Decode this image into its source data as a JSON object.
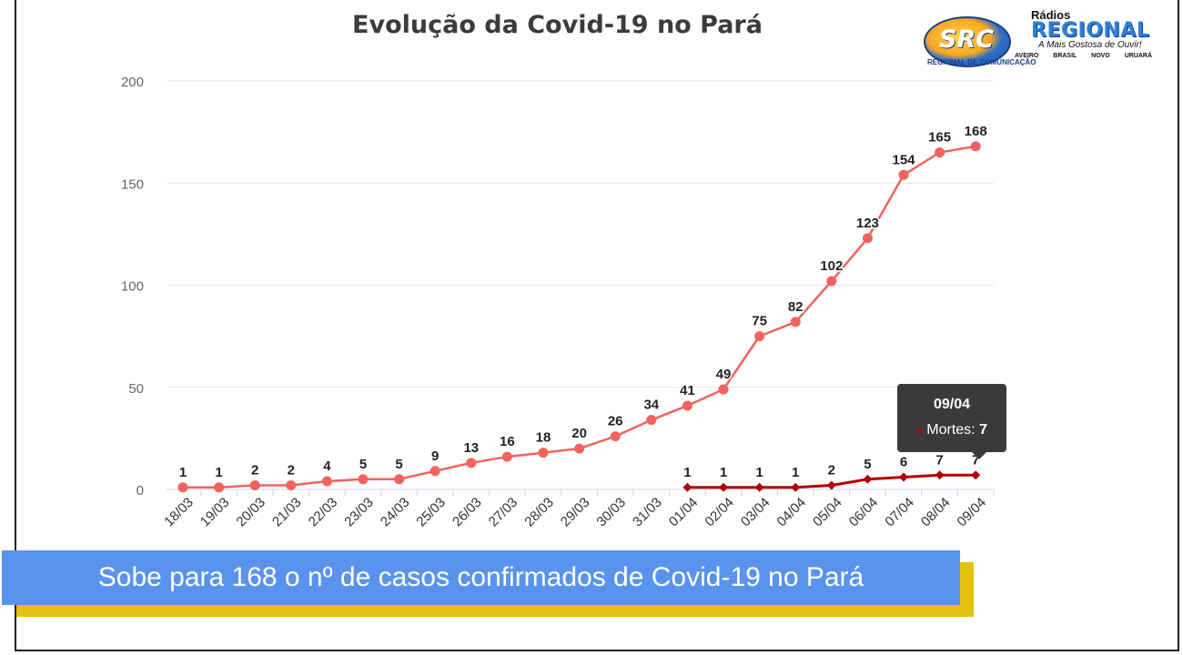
{
  "chart_data": {
    "type": "line",
    "title": "Evolução da Covid-19 no Pará",
    "categories": [
      "18/03",
      "19/03",
      "20/03",
      "21/03",
      "22/03",
      "23/03",
      "24/03",
      "25/03",
      "26/03",
      "27/03",
      "28/03",
      "29/03",
      "30/03",
      "31/03",
      "01/04",
      "02/04",
      "03/04",
      "04/04",
      "05/04",
      "06/04",
      "07/04",
      "08/04",
      "09/04"
    ],
    "series": [
      {
        "values": [
          1,
          1,
          2,
          2,
          4,
          5,
          5,
          9,
          13,
          16,
          18,
          20,
          26,
          34,
          41,
          49,
          75,
          82,
          102,
          123,
          154,
          165,
          168
        ],
        "color": "#f0635f"
      },
      {
        "name": "Mortes",
        "values": [
          null,
          null,
          null,
          null,
          null,
          null,
          null,
          null,
          null,
          null,
          null,
          null,
          null,
          null,
          1,
          1,
          1,
          1,
          2,
          5,
          6,
          7,
          7
        ],
        "color": "#b30000"
      }
    ],
    "ylim": [
      0,
      200
    ],
    "yticks": [
      0,
      50,
      100,
      150,
      200
    ],
    "grid": true,
    "xlabel": "",
    "ylabel": ""
  },
  "tooltip": {
    "date": "09/04",
    "label": "Mortes:",
    "value": "7"
  },
  "banner": {
    "text": "Sobe para 168 o nº de casos confirmados de Covid-19 no Pará"
  },
  "logo": {
    "center": "SRC",
    "arc_text": "REGIONAL DE COMUNICAÇÃO",
    "line1": "Rádios",
    "line2": "REGIONAL",
    "slogan": "A Mais Gostosa de Ouvir!",
    "cities": "AVEIRO BRASIL NOVO URUARÁ"
  }
}
